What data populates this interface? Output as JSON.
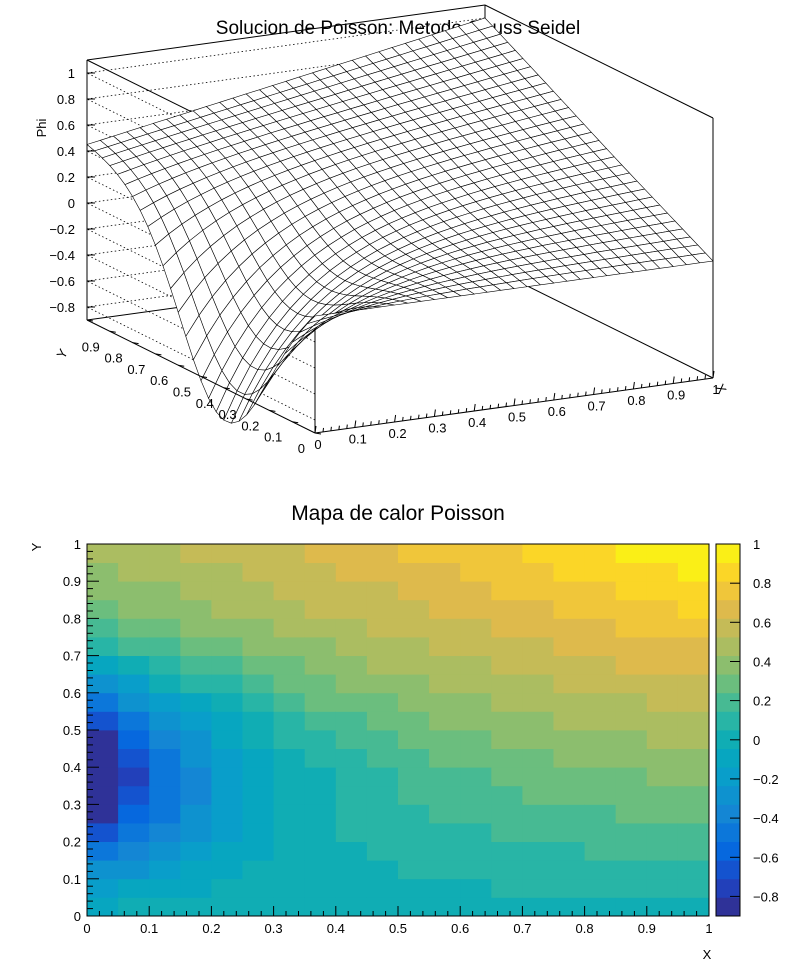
{
  "chart_data": [
    {
      "type": "surface",
      "title": "Solucion de Poisson: Metodo Gauss Seidel",
      "xlabel": "X",
      "ylabel": "Y",
      "zlabel": "Phi",
      "xlim": [
        0,
        1
      ],
      "ylim": [
        0,
        1
      ],
      "zlim": [
        -0.9,
        1.1
      ],
      "x_ticks": [
        "0",
        "0.1",
        "0.2",
        "0.3",
        "0.4",
        "0.5",
        "0.6",
        "0.7",
        "0.8",
        "0.9",
        "1"
      ],
      "y_ticks": [
        "0",
        "0.1",
        "0.2",
        "0.3",
        "0.4",
        "0.5",
        "0.6",
        "0.7",
        "0.8",
        "0.9",
        "1"
      ],
      "z_ticks": [
        "−0.8",
        "−0.6",
        "−0.4",
        "−0.2",
        "0",
        "0.2",
        "0.4",
        "0.6",
        "0.8",
        "1"
      ],
      "grid_size": [
        30,
        30
      ],
      "corner_values": {
        "x0_y0": 0.0,
        "x1_y0": 0.0,
        "x0_y1": 0.45,
        "x1_y1": 1.0
      },
      "minimum": {
        "x": 0.0,
        "y": 0.4,
        "z": -0.88
      }
    },
    {
      "type": "heatmap",
      "title": "Mapa de calor Poisson",
      "xlabel": "X",
      "ylabel": "Y",
      "xlim": [
        0,
        1
      ],
      "ylim": [
        0,
        1
      ],
      "zlim": [
        -0.9,
        1.0
      ],
      "x_ticks": [
        "0",
        "0.1",
        "0.2",
        "0.3",
        "0.4",
        "0.5",
        "0.6",
        "0.7",
        "0.8",
        "0.9",
        "1"
      ],
      "y_ticks": [
        "0",
        "0.1",
        "0.2",
        "0.3",
        "0.4",
        "0.5",
        "0.6",
        "0.7",
        "0.8",
        "0.9",
        "1"
      ],
      "colorbar_ticks": [
        "−0.8",
        "−0.6",
        "−0.4",
        "−0.2",
        "0",
        "0.2",
        "0.4",
        "0.6",
        "0.8",
        "1"
      ],
      "colormap": "parula",
      "grid_size": [
        20,
        20
      ]
    }
  ]
}
